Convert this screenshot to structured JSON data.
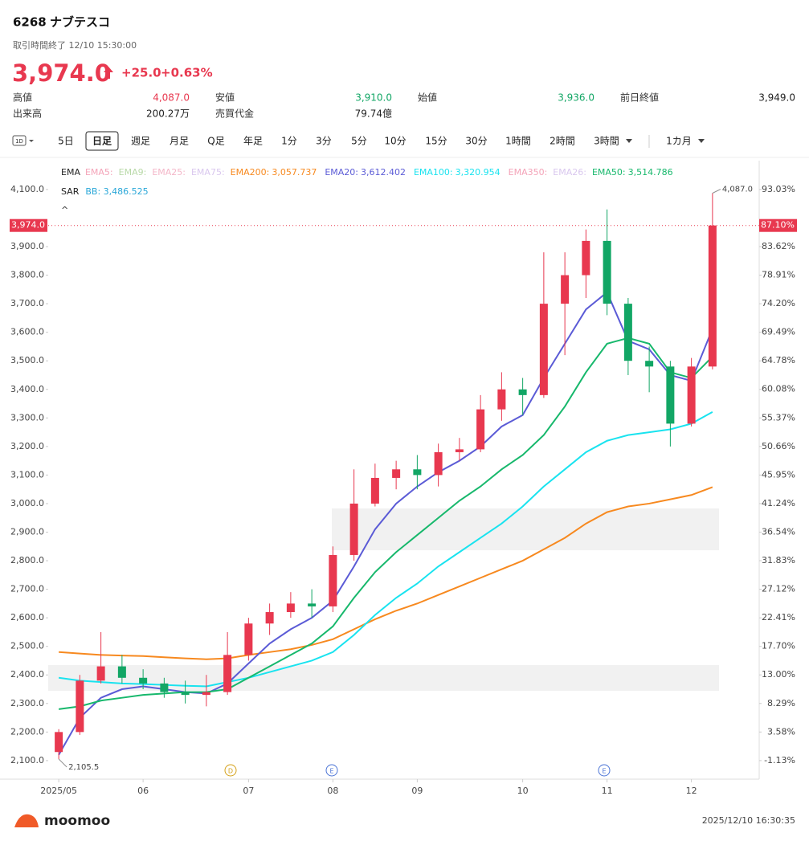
{
  "header": {
    "ticker": "6268",
    "name": "ナブテスコ",
    "status": "取引時間終了 12/10 15:30:00",
    "price": "3,974.0",
    "change": "+25.0",
    "change_pct": "+0.63%",
    "stats": [
      [
        {
          "label": "高値",
          "value": "4,087.0",
          "color": "#e8384f"
        },
        {
          "label": "安値",
          "value": "3,910.0",
          "color": "#12a665"
        },
        {
          "label": "始値",
          "value": "3,936.0",
          "color": "#12a665"
        },
        {
          "label": "前日終値",
          "value": "3,949.0",
          "color": "#222222"
        }
      ],
      [
        {
          "label": "出来高",
          "value": "200.27万",
          "color": "#222222"
        },
        {
          "label": "売買代金",
          "value": "79.74億",
          "color": "#222222"
        }
      ]
    ]
  },
  "toolbar": {
    "icon": "1D",
    "items": [
      "5日",
      "日足",
      "週足",
      "月足",
      "Q足",
      "年足",
      "1分",
      "3分",
      "5分",
      "10分",
      "15分",
      "30分",
      "1時間",
      "2時間",
      "3時間",
      "1カ月"
    ],
    "selected": 1
  },
  "footer": {
    "brand": "moomoo",
    "timestamp": "2025/12/10 16:30:35"
  },
  "chart_data": {
    "type": "candlestick",
    "categories": [
      "2025/05",
      null,
      null,
      null,
      "06",
      null,
      null,
      null,
      null,
      "07",
      null,
      null,
      null,
      "08",
      null,
      null,
      null,
      "09",
      null,
      null,
      null,
      null,
      "10",
      null,
      null,
      null,
      "11",
      null,
      null,
      null,
      "12",
      null
    ],
    "ohlc": {
      "open": [
        2130,
        2200,
        2380,
        2430,
        2390,
        2370,
        2340,
        2330,
        2340,
        2470,
        2580,
        2620,
        2650,
        2640,
        2820,
        3000,
        3090,
        3120,
        3100,
        3180,
        3190,
        3330,
        3400,
        3380,
        3700,
        3800,
        3920,
        3700,
        3500,
        3480,
        3280,
        3480
      ],
      "high": [
        2210,
        2400,
        2550,
        2470,
        2420,
        2390,
        2380,
        2400,
        2550,
        2600,
        2650,
        2690,
        2700,
        2850,
        3120,
        3140,
        3150,
        3170,
        3210,
        3230,
        3380,
        3460,
        3440,
        3880,
        3880,
        3960,
        4030,
        3720,
        3550,
        3500,
        3510,
        4087.0
      ],
      "low": [
        2105.5,
        2190,
        2370,
        2370,
        2350,
        2320,
        2300,
        2290,
        2330,
        2450,
        2540,
        2600,
        2600,
        2620,
        2800,
        2990,
        3050,
        3050,
        3060,
        3150,
        3180,
        3290,
        3310,
        3370,
        3520,
        3720,
        3660,
        3450,
        3390,
        3200,
        3270,
        3470
      ],
      "close": [
        2200,
        2380,
        2430,
        2390,
        2370,
        2340,
        2330,
        2340,
        2470,
        2580,
        2620,
        2650,
        2640,
        2820,
        3000,
        3090,
        3120,
        3100,
        3180,
        3190,
        3330,
        3400,
        3380,
        3700,
        3800,
        3920,
        3700,
        3500,
        3480,
        3280,
        3480,
        3974.0
      ]
    },
    "up_color": "#e8384f",
    "down_color": "#12a665",
    "max_label": "4,087.0",
    "min_label": "2,105.5",
    "ema_label": "EMA",
    "sar_label": "SAR",
    "bb_text": "BB: 3,486.525",
    "bb_color": "#2aa7d8",
    "series": [
      {
        "name": "EMA5:",
        "color": "#f4a3b8"
      },
      {
        "name": "EMA9:",
        "color": "#b9d9a8"
      },
      {
        "name": "EMA25:",
        "color": "#f4b6c8"
      },
      {
        "name": "EMA75:",
        "color": "#d9c7ee"
      },
      {
        "name": "EMA200:",
        "color": "#f7891f",
        "value_label": "3,057.737",
        "values": [
          2480,
          2475,
          2470,
          2468,
          2466,
          2462,
          2458,
          2455,
          2458,
          2470,
          2480,
          2490,
          2505,
          2525,
          2560,
          2595,
          2625,
          2650,
          2680,
          2710,
          2740,
          2770,
          2800,
          2840,
          2880,
          2930,
          2970,
          2990,
          3000,
          3015,
          3030,
          3057.737
        ]
      },
      {
        "name": "EMA20:",
        "color": "#5b5bd6",
        "value_label": "3,612.402",
        "values": [
          2120,
          2250,
          2320,
          2350,
          2360,
          2350,
          2340,
          2335,
          2370,
          2440,
          2510,
          2560,
          2600,
          2660,
          2780,
          2910,
          3000,
          3060,
          3110,
          3150,
          3200,
          3270,
          3310,
          3440,
          3560,
          3680,
          3740,
          3570,
          3540,
          3450,
          3430,
          3612.402
        ]
      },
      {
        "name": "EMA100:",
        "color": "#19e3ef",
        "value_label": "3,320.954",
        "values": [
          2390,
          2380,
          2375,
          2370,
          2368,
          2365,
          2362,
          2360,
          2375,
          2390,
          2410,
          2430,
          2450,
          2480,
          2540,
          2610,
          2670,
          2720,
          2780,
          2830,
          2880,
          2930,
          2990,
          3060,
          3120,
          3180,
          3220,
          3240,
          3250,
          3260,
          3280,
          3320.954
        ]
      },
      {
        "name": "EMA350:",
        "color": "#f4a3b8"
      },
      {
        "name": "EMA26:",
        "color": "#d9c7ee"
      },
      {
        "name": "EMA50:",
        "color": "#17b86c",
        "value_label": "3,514.786",
        "values": [
          2280,
          2290,
          2310,
          2320,
          2330,
          2335,
          2340,
          2340,
          2350,
          2390,
          2430,
          2470,
          2510,
          2570,
          2670,
          2760,
          2830,
          2890,
          2950,
          3010,
          3060,
          3120,
          3170,
          3240,
          3340,
          3460,
          3560,
          3580,
          3560,
          3460,
          3440,
          3514.786
        ]
      }
    ],
    "last_price": 3974.0,
    "last_price_label": "3,974.0",
    "last_pct_label": "87.10%",
    "ylim": [
      2035,
      4201
    ],
    "yticks": [
      {
        "value": 2100,
        "label": "2,100.0"
      },
      {
        "value": 2200,
        "label": "2,200.0"
      },
      {
        "value": 2300,
        "label": "2,300.0"
      },
      {
        "value": 2400,
        "label": "2,400.0"
      },
      {
        "value": 2500,
        "label": "2,500.0"
      },
      {
        "value": 2600,
        "label": "2,600.0"
      },
      {
        "value": 2700,
        "label": "2,700.0"
      },
      {
        "value": 2800,
        "label": "2,800.0"
      },
      {
        "value": 2900,
        "label": "2,900.0"
      },
      {
        "value": 3000,
        "label": "3,000.0"
      },
      {
        "value": 3100,
        "label": "3,100.0"
      },
      {
        "value": 3200,
        "label": "3,200.0"
      },
      {
        "value": 3300,
        "label": "3,300.0"
      },
      {
        "value": 3400,
        "label": "3,400.0"
      },
      {
        "value": 3500,
        "label": "3,500.0"
      },
      {
        "value": 3600,
        "label": "3,600.0"
      },
      {
        "value": 3700,
        "label": "3,700.0"
      },
      {
        "value": 3800,
        "label": "3,800.0"
      },
      {
        "value": 3900,
        "label": "3,900.0"
      },
      {
        "value": 4100,
        "label": "4,100.0"
      }
    ],
    "y2lim": [
      -4.19,
      97.79
    ],
    "y2ticks": [
      {
        "value": -1.13,
        "label": "-1.13%"
      },
      {
        "value": 3.58,
        "label": "3.58%"
      },
      {
        "value": 8.29,
        "label": "8.29%"
      },
      {
        "value": 13.0,
        "label": "13.00%"
      },
      {
        "value": 17.7,
        "label": "17.70%"
      },
      {
        "value": 22.41,
        "label": "22.41%"
      },
      {
        "value": 27.12,
        "label": "27.12%"
      },
      {
        "value": 31.83,
        "label": "31.83%"
      },
      {
        "value": 36.54,
        "label": "36.54%"
      },
      {
        "value": 41.24,
        "label": "41.24%"
      },
      {
        "value": 45.95,
        "label": "45.95%"
      },
      {
        "value": 50.66,
        "label": "50.66%"
      },
      {
        "value": 55.37,
        "label": "55.37%"
      },
      {
        "value": 60.08,
        "label": "60.08%"
      },
      {
        "value": 64.78,
        "label": "64.78%"
      },
      {
        "value": 69.49,
        "label": "69.49%"
      },
      {
        "value": 74.2,
        "label": "74.20%"
      },
      {
        "value": 78.91,
        "label": "78.91%"
      },
      {
        "value": 83.62,
        "label": "83.62%"
      },
      {
        "value": 93.03,
        "label": "93.03%"
      }
    ],
    "events": [
      "D",
      "E",
      "E"
    ]
  }
}
